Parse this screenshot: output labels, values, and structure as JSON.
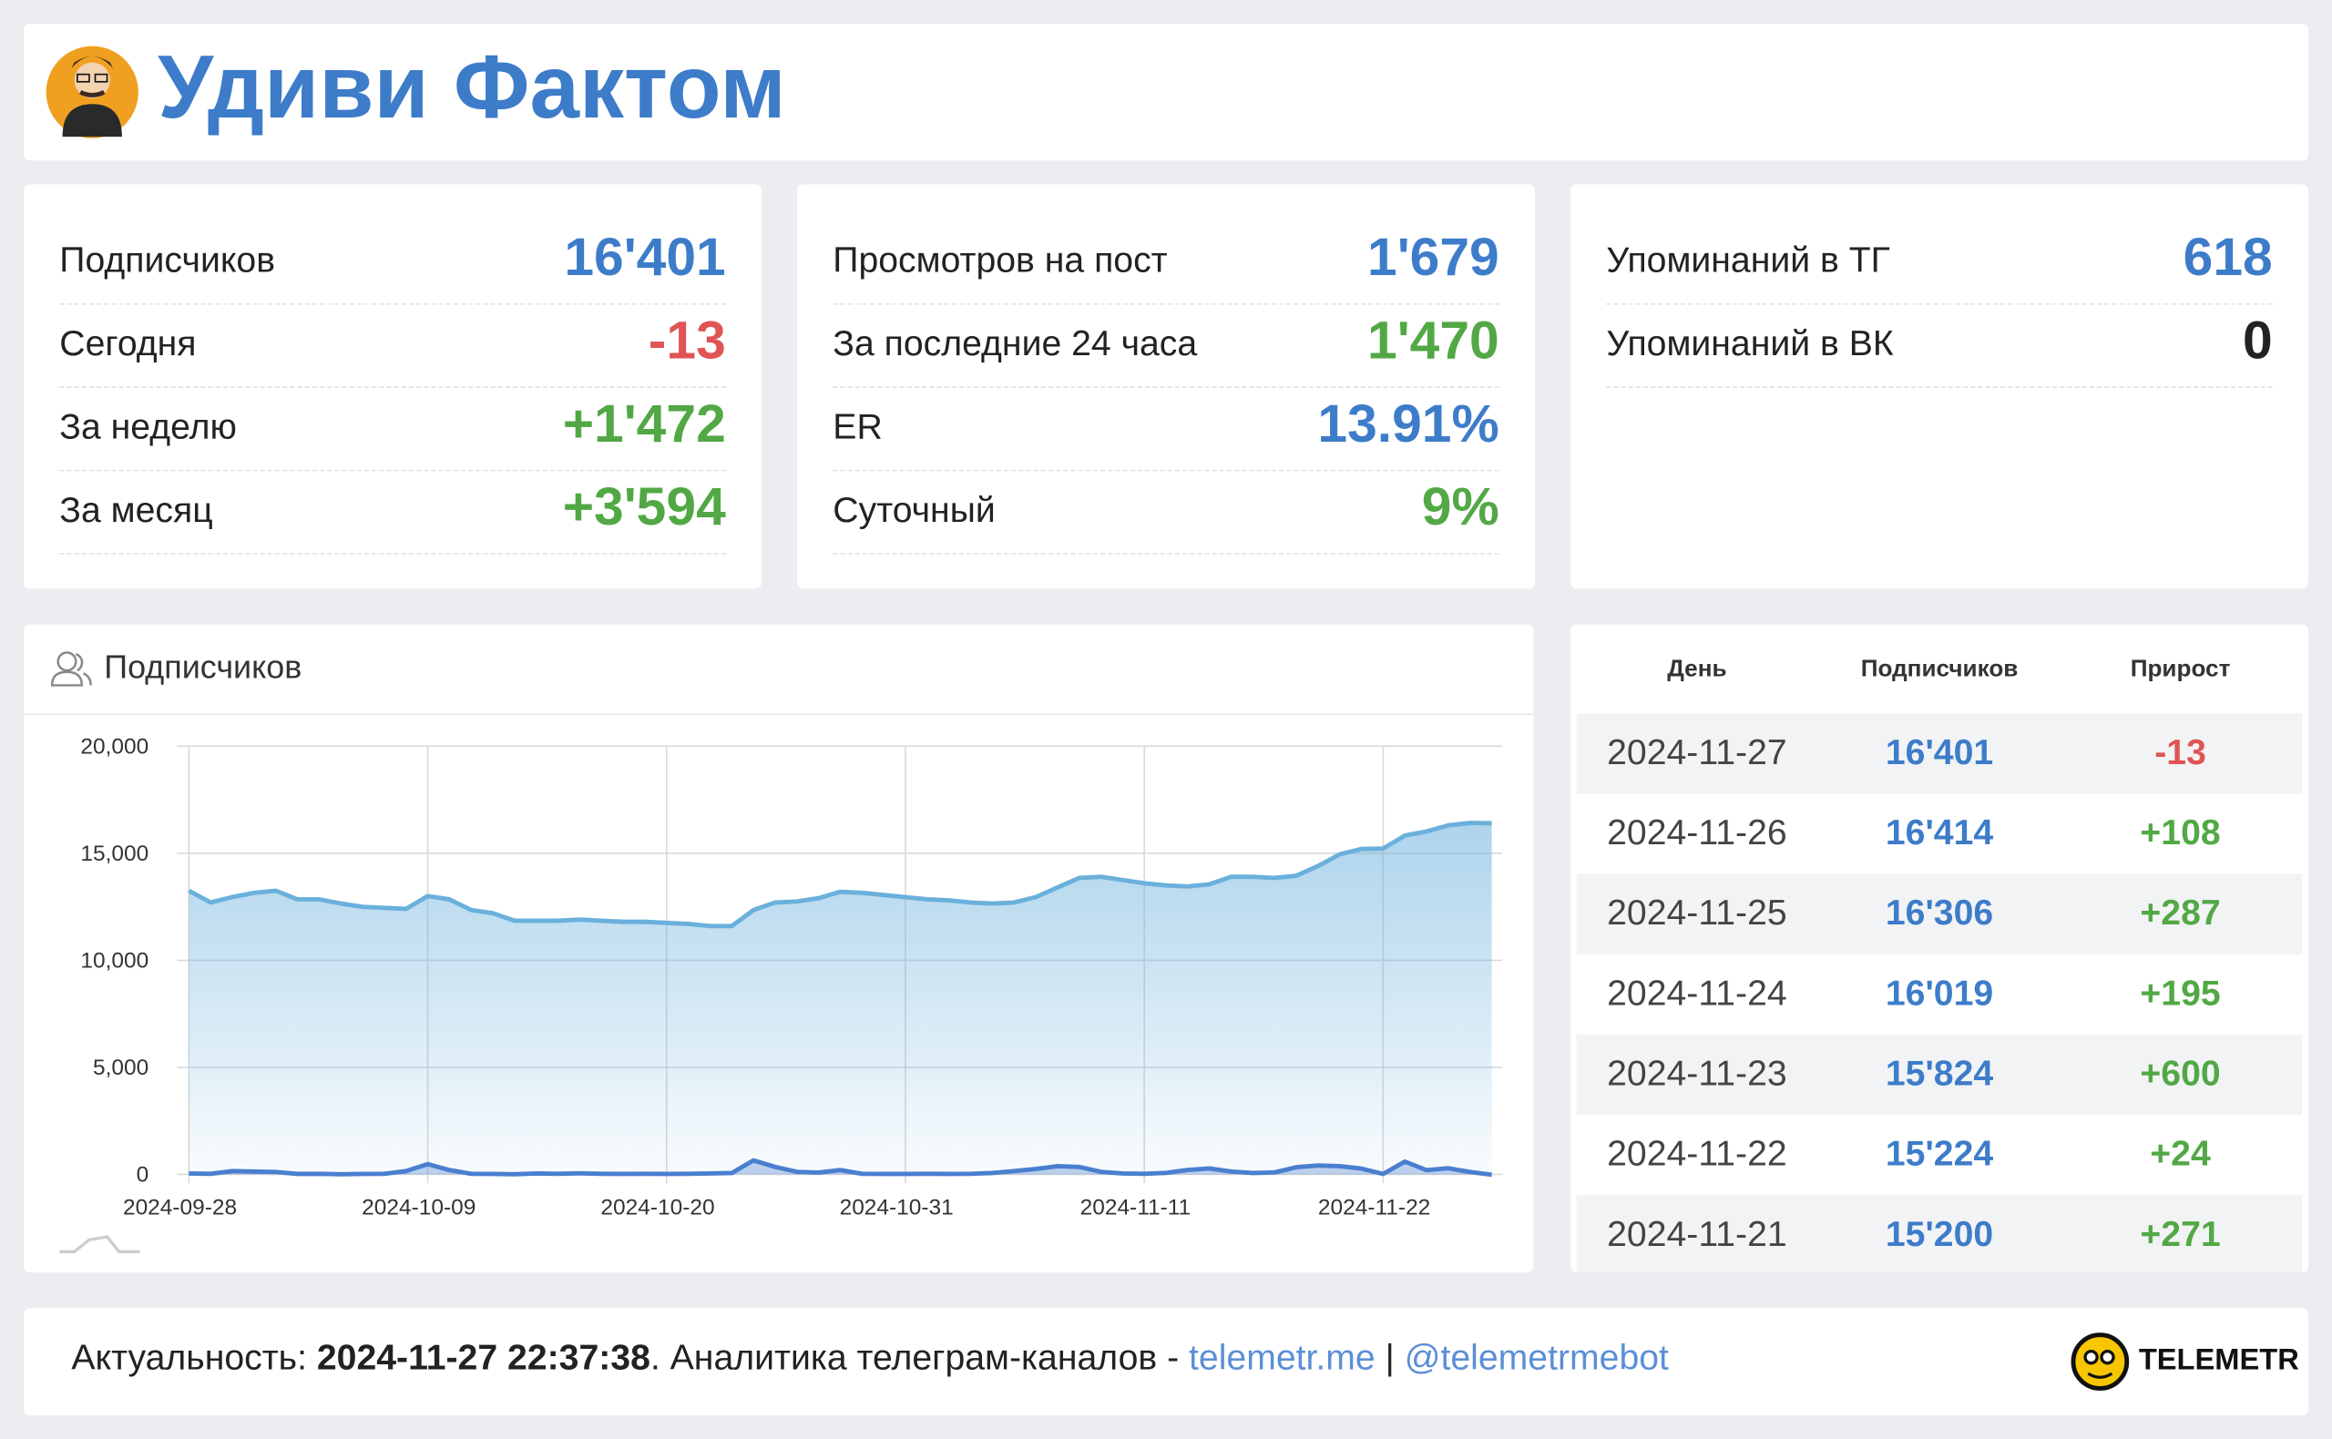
{
  "header": {
    "title": "Удиви Фактом"
  },
  "cards": [
    {
      "rows": [
        {
          "label": "Подписчиков",
          "value": "16'401",
          "color": "#3d7cc9"
        },
        {
          "label": "Сегодня",
          "value": "-13",
          "color": "#e05454"
        },
        {
          "label": "За неделю",
          "value": "+1'472",
          "color": "#52a845"
        },
        {
          "label": "За месяц",
          "value": "+3'594",
          "color": "#52a845"
        }
      ]
    },
    {
      "rows": [
        {
          "label": "Просмотров на пост",
          "value": "1'679",
          "color": "#3d7cc9"
        },
        {
          "label": "За последние 24 часа",
          "value": "1'470",
          "color": "#52a845"
        },
        {
          "label": "ER",
          "value": "13.91%",
          "color": "#3d7cc9"
        },
        {
          "label": "Суточный",
          "value": "9%",
          "color": "#52a845"
        }
      ]
    },
    {
      "rows": [
        {
          "label": "Упоминаний в ТГ",
          "value": "618",
          "color": "#3d7cc9"
        },
        {
          "label": "Упоминаний в ВК",
          "value": "0",
          "color": "#222222"
        }
      ]
    }
  ],
  "chart_data": {
    "type": "area",
    "title": "Подписчиков",
    "x": [
      "2024-09-28",
      "2024-09-29",
      "2024-09-30",
      "2024-10-01",
      "2024-10-02",
      "2024-10-03",
      "2024-10-04",
      "2024-10-05",
      "2024-10-06",
      "2024-10-07",
      "2024-10-08",
      "2024-10-09",
      "2024-10-10",
      "2024-10-11",
      "2024-10-12",
      "2024-10-13",
      "2024-10-14",
      "2024-10-15",
      "2024-10-16",
      "2024-10-17",
      "2024-10-18",
      "2024-10-19",
      "2024-10-20",
      "2024-10-21",
      "2024-10-22",
      "2024-10-23",
      "2024-10-24",
      "2024-10-25",
      "2024-10-26",
      "2024-10-27",
      "2024-10-28",
      "2024-10-29",
      "2024-10-30",
      "2024-10-31",
      "2024-11-01",
      "2024-11-02",
      "2024-11-03",
      "2024-11-04",
      "2024-11-05",
      "2024-11-06",
      "2024-11-07",
      "2024-11-08",
      "2024-11-09",
      "2024-11-10",
      "2024-11-11",
      "2024-11-12",
      "2024-11-13",
      "2024-11-14",
      "2024-11-15",
      "2024-11-16",
      "2024-11-17",
      "2024-11-18",
      "2024-11-19",
      "2024-11-20",
      "2024-11-21",
      "2024-11-22",
      "2024-11-23",
      "2024-11-24",
      "2024-11-25",
      "2024-11-26",
      "2024-11-27"
    ],
    "series": [
      {
        "color": "#6ab0dc",
        "values": [
          13250,
          12700,
          12950,
          13150,
          13250,
          12850,
          12850,
          12650,
          12500,
          12450,
          12400,
          13000,
          12850,
          12350,
          12200,
          11850,
          11850,
          11850,
          11900,
          11850,
          11800,
          11800,
          11750,
          11700,
          11600,
          11600,
          12350,
          12700,
          12750,
          12900,
          13200,
          13150,
          13050,
          12950,
          12850,
          12800,
          12700,
          12650,
          12700,
          12950,
          13400,
          13850,
          13900,
          13750,
          13600,
          13500,
          13450,
          13550,
          13900,
          13900,
          13850,
          13950,
          14400,
          14950,
          15200,
          15224,
          15824,
          16019,
          16306,
          16414,
          16401
        ]
      },
      {
        "color": "#4a7fd0",
        "values": [
          40,
          30,
          150,
          130,
          110,
          20,
          30,
          10,
          20,
          30,
          150,
          480,
          200,
          30,
          20,
          10,
          40,
          30,
          50,
          30,
          20,
          30,
          20,
          30,
          40,
          60,
          650,
          350,
          120,
          80,
          200,
          30,
          20,
          20,
          30,
          20,
          30,
          60,
          150,
          250,
          380,
          350,
          120,
          40,
          30,
          70,
          210,
          280,
          130,
          60,
          90,
          330,
          420,
          380,
          271,
          24,
          600,
          195,
          287,
          108,
          -13
        ]
      }
    ],
    "ylim": [
      0,
      20000
    ],
    "yticks": [
      0,
      {
        "value": 5000,
        "label": "5,000"
      },
      {
        "value": 10000,
        "label": "10,000"
      },
      {
        "value": 15000,
        "label": "15,000"
      },
      {
        "value": 20000,
        "label": "20,000"
      }
    ],
    "xticks": [
      "2024-09-28",
      "2024-10-09",
      "2024-10-20",
      "2024-10-31",
      "2024-11-11",
      "2024-11-22"
    ],
    "grid": true
  },
  "table": {
    "columns": [
      "День",
      "Подписчиков",
      "Прирост"
    ],
    "rows": [
      [
        "2024-11-27",
        "16'401",
        "-13"
      ],
      [
        "2024-11-26",
        "16'414",
        "+108"
      ],
      [
        "2024-11-25",
        "16'306",
        "+287"
      ],
      [
        "2024-11-24",
        "16'019",
        "+195"
      ],
      [
        "2024-11-23",
        "15'824",
        "+600"
      ],
      [
        "2024-11-22",
        "15'224",
        "+24"
      ],
      [
        "2024-11-21",
        "15'200",
        "+271"
      ]
    ]
  },
  "footer": {
    "label": "Актуальность: ",
    "timestamp": "2024-11-27 22:37:38",
    "text": ". Аналитика телеграм-каналов - ",
    "links": [
      "telemetr.me",
      "@telemetrmebot"
    ],
    "separator": " | ",
    "logo": "TELEMETR"
  }
}
